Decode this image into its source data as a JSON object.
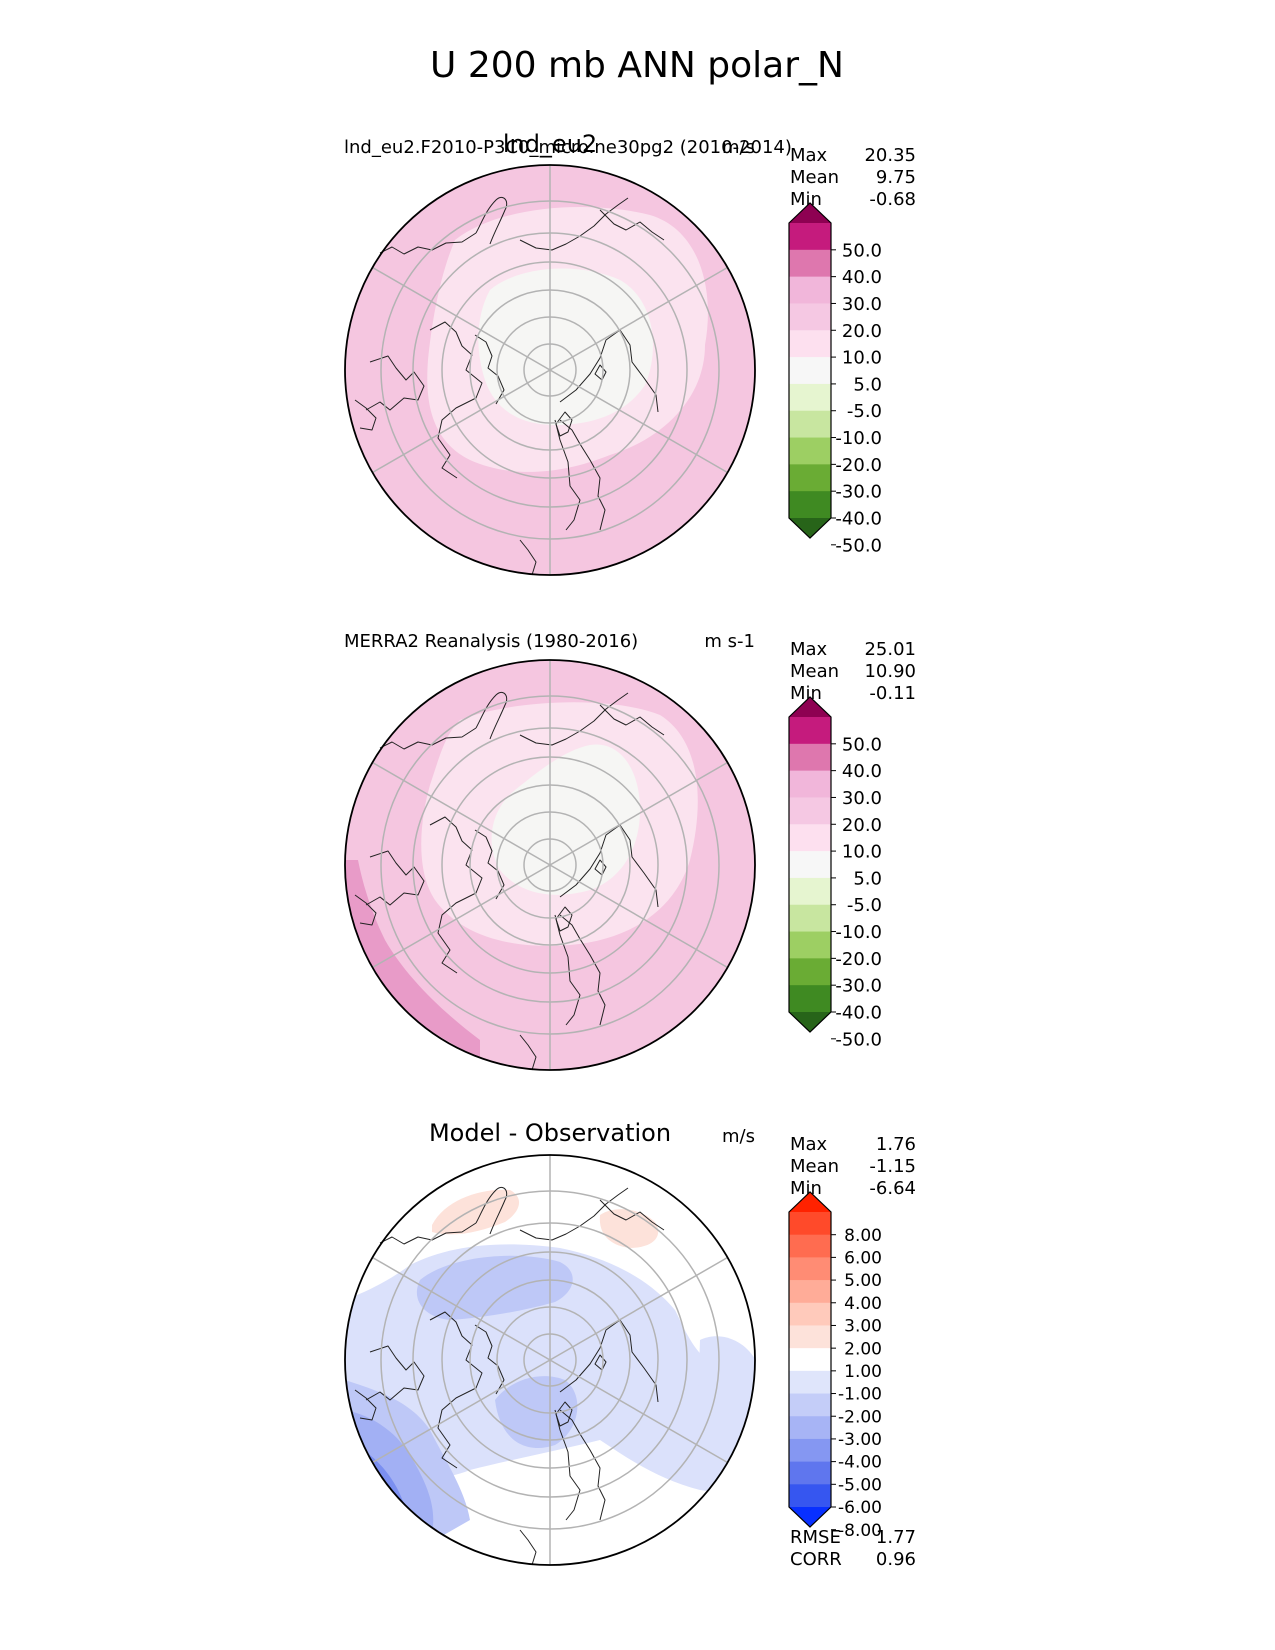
{
  "figure_title": "U 200 mb ANN polar_N",
  "chart_data": [
    {
      "type": "heatmap",
      "projection": "north-polar-stereographic",
      "center_title": "lnd_eu2",
      "left_title": "lnd_eu2.F2010-P3C0_micro.ne30pg2 (2010-2014)",
      "units": "m/s",
      "stats": {
        "Max": "20.35",
        "Mean": "9.75",
        "Min": "-0.68"
      },
      "stat_labels": [
        "Max",
        "Mean",
        "Min"
      ],
      "colorbar": {
        "ticks": [
          "50.0",
          "40.0",
          "30.0",
          "20.0",
          "10.0",
          "5.0",
          "-5.0",
          "-10.0",
          "-20.0",
          "-30.0",
          "-40.0",
          "-50.0"
        ],
        "colors": [
          "#8e0152",
          "#c51b7d",
          "#de77ae",
          "#f1b6da",
          "#f5c8e3",
          "#fde0ef",
          "#f7f7f7",
          "#e6f5d0",
          "#c8e6a0",
          "#9dcf63",
          "#6aac34",
          "#3f8a22",
          "#276419"
        ],
        "extend": "both"
      },
      "fields": [
        {
          "level": "10 to 20",
          "color": "#f5c6e0"
        },
        {
          "level": "5 to 10",
          "color": "#fbe3ef"
        },
        {
          "level": "-5 to 5",
          "color": "#f6f6f4"
        }
      ]
    },
    {
      "type": "heatmap",
      "projection": "north-polar-stereographic",
      "center_title": "",
      "left_title": "MERRA2 Reanalysis (1980-2016)",
      "units": "m s-1",
      "stats": {
        "Max": "25.01",
        "Mean": "10.90",
        "Min": "-0.11"
      },
      "stat_labels": [
        "Max",
        "Mean",
        "Min"
      ],
      "colorbar": {
        "ticks": [
          "50.0",
          "40.0",
          "30.0",
          "20.0",
          "10.0",
          "5.0",
          "-5.0",
          "-10.0",
          "-20.0",
          "-30.0",
          "-40.0",
          "-50.0"
        ],
        "colors": [
          "#8e0152",
          "#c51b7d",
          "#de77ae",
          "#f1b6da",
          "#f5c8e3",
          "#fde0ef",
          "#f7f7f7",
          "#e6f5d0",
          "#c8e6a0",
          "#9dcf63",
          "#6aac34",
          "#3f8a22",
          "#276419"
        ],
        "extend": "both"
      },
      "fields": [
        {
          "level": "20 to 30",
          "color": "#e89bc8"
        },
        {
          "level": "10 to 20",
          "color": "#f5c6e0"
        },
        {
          "level": "5 to 10",
          "color": "#fbe3ef"
        },
        {
          "level": "-5 to 5",
          "color": "#f6f6f4"
        }
      ]
    },
    {
      "type": "heatmap",
      "projection": "north-polar-stereographic",
      "center_title": "Model - Observation",
      "left_title": "",
      "units": "m/s",
      "stats": {
        "Max": "1.76",
        "Mean": "-1.15",
        "Min": "-6.64"
      },
      "stat_labels": [
        "Max",
        "Mean",
        "Min"
      ],
      "colorbar": {
        "ticks": [
          "8.00",
          "6.00",
          "5.00",
          "4.00",
          "3.00",
          "2.00",
          "1.00",
          "-1.00",
          "-2.00",
          "-3.00",
          "-4.00",
          "-5.00",
          "-6.00",
          "-8.00"
        ],
        "colors": [
          "#ff2200",
          "#ff4a2a",
          "#ff6c50",
          "#ff8c74",
          "#ffac98",
          "#ffcabb",
          "#fde2da",
          "#ffffff",
          "#dfe5fb",
          "#c4cdf8",
          "#a7b4f5",
          "#8597f2",
          "#5f76ee",
          "#3656f0",
          "#0830ff"
        ],
        "extend": "both"
      },
      "fields": [
        {
          "level": "1 to 2",
          "color": "#fde2da"
        },
        {
          "level": "-2 to -1",
          "color": "#dbe1fb"
        },
        {
          "level": "-3 to -2",
          "color": "#bec8f7"
        },
        {
          "level": "-4 to -3",
          "color": "#a2b0f4"
        },
        {
          "level": "-5 to -4",
          "color": "#7b8ff0"
        },
        {
          "level": "-6 to -5",
          "color": "#5674ee"
        }
      ],
      "extra_stats": {
        "RMSE": "1.77",
        "CORR": "0.96"
      },
      "extra_stat_labels": [
        "RMSE",
        "CORR"
      ]
    }
  ]
}
